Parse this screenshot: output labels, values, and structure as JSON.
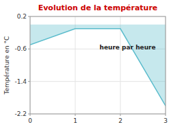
{
  "chart_data": {
    "type": "area",
    "title": "Evolution de la température",
    "xlabel": "heure par heure",
    "ylabel": "Température en °C",
    "x": [
      0,
      1,
      2,
      3
    ],
    "values": [
      -0.5,
      -0.1,
      -0.1,
      -2.0
    ],
    "color": "#5bbccc",
    "xlim": [
      0,
      3
    ],
    "ylim": [
      -2.2,
      0.2
    ],
    "xticks": [
      0,
      1,
      2,
      3
    ],
    "yticks": [
      0.2,
      -0.6,
      -1.4,
      -2.2
    ],
    "grid": true
  }
}
